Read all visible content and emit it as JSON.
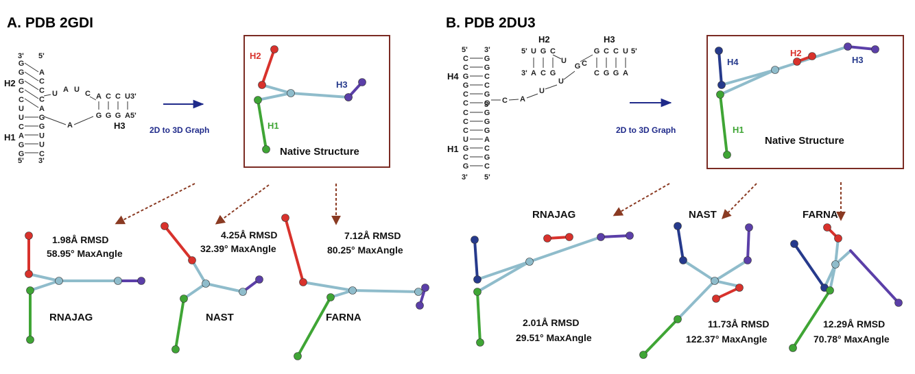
{
  "colors": {
    "helix_green": "#3fa535",
    "helix_red": "#d8322c",
    "helix_purple": "#5b3fa8",
    "helix_navy": "#263a8c",
    "junction": "#8fbccb",
    "box": "#7a2a22",
    "blue_arrow": "#1f2a8a",
    "brown_arrow": "#8a3a22"
  },
  "panels": [
    {
      "title": "A. PDB 2GDI",
      "conversion_label": "2D to 3D Graph",
      "native_label": "Native Structure",
      "helix_labels": [
        "H1",
        "H2",
        "H3"
      ],
      "secondary": {
        "prime_labels": [
          "3'",
          "5'",
          "5'",
          "3'",
          "3'",
          "5'"
        ],
        "helix_labels": [
          "H2",
          "H1",
          "H3"
        ],
        "left_strand": [
          "G",
          "G",
          "G",
          "C",
          "C",
          "U",
          "U",
          "C",
          "A",
          "G",
          "G"
        ],
        "right_strand": [
          "A",
          "C",
          "C",
          "C",
          "A",
          "G",
          "G",
          "U",
          "U",
          "C"
        ],
        "loop_bases": [
          "U",
          "A",
          "U",
          "C",
          "A"
        ],
        "h3_top": [
          "A",
          "C",
          "C",
          "U"
        ],
        "h3_bottom": [
          "G",
          "G",
          "G",
          "A"
        ]
      },
      "predictions": [
        {
          "method": "RNAJAG",
          "rmsd": "1.98Å RMSD",
          "angle": "58.95° MaxAngle"
        },
        {
          "method": "NAST",
          "rmsd": "4.25Å RMSD",
          "angle": "32.39° MaxAngle"
        },
        {
          "method": "FARNA",
          "rmsd": "7.12Å RMSD",
          "angle": "80.25° MaxAngle"
        }
      ]
    },
    {
      "title": "B. PDB 2DU3",
      "conversion_label": "2D to 3D Graph",
      "native_label": "Native Structure",
      "helix_labels": [
        "H1",
        "H2",
        "H3",
        "H4"
      ],
      "secondary": {
        "prime_labels": [
          "5'",
          "3'",
          "3'",
          "3'",
          "5'",
          "5'",
          "3'",
          "5'"
        ],
        "helix_labels": [
          "H4",
          "H1",
          "H2",
          "H3"
        ],
        "h4_left": [
          "C",
          "C",
          "G",
          "G",
          "C",
          "C"
        ],
        "h4_right": [
          "G",
          "G",
          "C",
          "C",
          "G",
          "G"
        ],
        "h1_left": [
          "C",
          "C",
          "C",
          "U",
          "G",
          "C",
          "G"
        ],
        "h1_right": [
          "G",
          "G",
          "G",
          "A",
          "C",
          "G",
          "C"
        ],
        "linker": [
          "C",
          "A",
          "U",
          "U",
          "G"
        ],
        "h2_top": [
          "U",
          "G",
          "C"
        ],
        "h2_bottom": [
          "A",
          "C",
          "G"
        ],
        "h3_top": [
          "G",
          "C",
          "C",
          "U"
        ],
        "h3_bottom": [
          "C",
          "G",
          "G",
          "A"
        ],
        "extra": [
          "U",
          "C"
        ]
      },
      "predictions": [
        {
          "method": "RNAJAG",
          "rmsd": "2.01Å RMSD",
          "angle": "29.51° MaxAngle"
        },
        {
          "method": "NAST",
          "rmsd": "11.73Å RMSD",
          "angle": "122.37° MaxAngle"
        },
        {
          "method": "FARNA",
          "rmsd": "12.29Å RMSD",
          "angle": "70.78° MaxAngle"
        }
      ]
    }
  ]
}
